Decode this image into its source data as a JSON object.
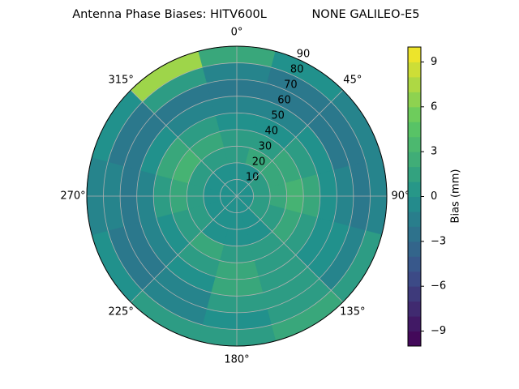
{
  "chart_data": {
    "type": "polar-contour",
    "title": "Antenna Phase Biases: HITV600L",
    "subtitle": "NONE GALILEO-E5",
    "colorbar_label": "Bias (mm)",
    "colormap": "viridis",
    "clim": [
      -10,
      10
    ],
    "cticks": [
      {
        "value": -9,
        "label": "−9"
      },
      {
        "value": -6,
        "label": "−6"
      },
      {
        "value": -3,
        "label": "−3"
      },
      0,
      3,
      6,
      9
    ],
    "rlim": [
      0,
      90
    ],
    "rticks": [
      10,
      20,
      30,
      40,
      50,
      60,
      70,
      80,
      90
    ],
    "thetaticks": [
      {
        "value": 0,
        "label": "0°"
      },
      {
        "value": 45,
        "label": "45°"
      },
      {
        "value": 90,
        "label": "90°"
      },
      {
        "value": 135,
        "label": "135°"
      },
      {
        "value": 180,
        "label": "180°"
      },
      {
        "value": 225,
        "label": "225°"
      },
      {
        "value": 270,
        "label": "270°"
      },
      {
        "value": 315,
        "label": "315°"
      }
    ],
    "theta": [
      0,
      30,
      60,
      90,
      120,
      150,
      180,
      210,
      240,
      270,
      300,
      330
    ],
    "r": [
      5,
      15,
      25,
      35,
      45,
      55,
      65,
      75,
      85
    ],
    "z": [
      [
        0,
        0,
        0,
        0,
        0,
        0,
        0,
        0,
        0,
        0,
        0,
        0
      ],
      [
        0,
        0,
        1,
        1,
        1,
        0,
        0,
        0,
        0,
        0,
        0,
        0
      ],
      [
        1,
        2,
        2,
        2,
        1,
        0,
        0,
        0,
        1,
        1,
        1,
        1
      ],
      [
        1,
        1,
        2,
        3,
        2,
        1,
        1,
        2,
        1,
        2,
        3,
        2
      ],
      [
        0,
        0,
        1,
        2,
        1,
        1,
        2,
        1,
        0,
        1,
        2,
        1
      ],
      [
        -1,
        -1,
        0,
        0,
        0,
        1,
        2,
        0,
        -1,
        -1,
        0,
        -1
      ],
      [
        -2,
        -2,
        -2,
        -1,
        0,
        1,
        1,
        -1,
        -2,
        -2,
        -2,
        -2
      ],
      [
        -1,
        -2,
        -2,
        -2,
        -1,
        1,
        0,
        -1,
        -2,
        -1,
        -2,
        1
      ],
      [
        2,
        0,
        -1,
        -1,
        1,
        2,
        1,
        1,
        0,
        -1,
        0,
        7
      ]
    ]
  }
}
